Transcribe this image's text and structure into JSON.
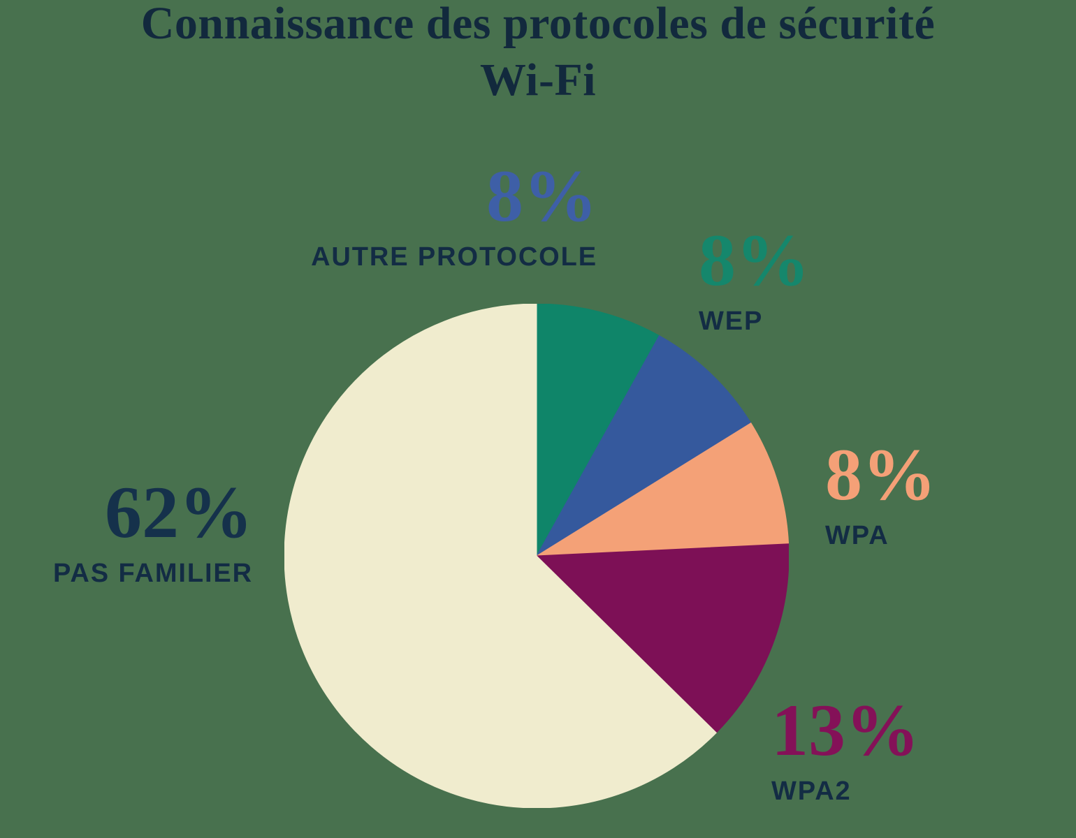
{
  "background_color": "#48714E",
  "title": {
    "line1": "Connaissance des protocoles de sécurité",
    "line2": "Wi-Fi",
    "color": "#12293D"
  },
  "chart_data": {
    "type": "pie",
    "title": "Connaissance des protocoles de sécurité Wi-Fi",
    "direction": "clockwise",
    "start_angle_deg_from_12_oclock": 0,
    "values_sum_note": "displayed percentages sum to 99",
    "label_color": "#132C44",
    "slices": [
      {
        "label": "WEP",
        "value_pct": 8,
        "display": "8%",
        "color": "#0F8569",
        "value_text_color": "#15876C"
      },
      {
        "label": "AUTRE PROTOCOLE",
        "value_pct": 8,
        "display": "8%",
        "color": "#35599D",
        "value_text_color": "#3E5FA7"
      },
      {
        "label": "WPA",
        "value_pct": 8,
        "display": "8%",
        "color": "#F4A177",
        "value_text_color": "#F4A077"
      },
      {
        "label": "WPA2",
        "value_pct": 13,
        "display": "13%",
        "color": "#7D1056",
        "value_text_color": "#841158"
      },
      {
        "label": "PAS FAMILIER",
        "value_pct": 62,
        "display": "62%",
        "color": "#F0ECCE",
        "value_text_color": "#15314B"
      }
    ]
  }
}
